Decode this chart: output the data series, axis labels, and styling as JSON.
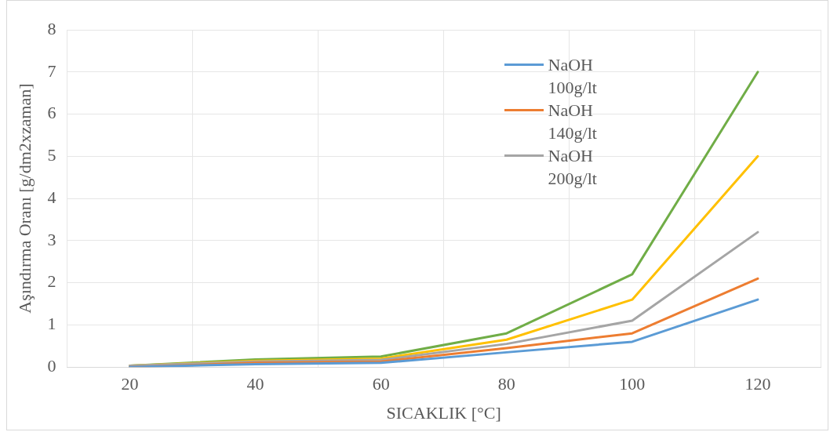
{
  "chart_data": {
    "type": "line",
    "xlabel": "SICAKLIK [°C]",
    "ylabel": "Aşındırma Oranı [g/dm2xzaman]",
    "categories": [
      "20",
      "40",
      "60",
      "80",
      "100",
      "120"
    ],
    "series": [
      {
        "name": "NaOH 100g/lt",
        "color": "#5b9bd5",
        "values": [
          0.0,
          0.07,
          0.1,
          0.35,
          0.6,
          1.6
        ]
      },
      {
        "name": "NaOH 140g/lt",
        "color": "#ed7d31",
        "values": [
          0.0,
          0.1,
          0.13,
          0.45,
          0.8,
          2.1
        ]
      },
      {
        "name": "NaOH 200g/lt",
        "color": "#a5a5a5",
        "values": [
          0.03,
          0.13,
          0.17,
          0.55,
          1.1,
          3.2
        ]
      },
      {
        "color": "#ffc000",
        "values": [
          0.03,
          0.15,
          0.2,
          0.65,
          1.6,
          5.0
        ]
      },
      {
        "color": "#70ad47",
        "values": [
          0.03,
          0.18,
          0.25,
          0.8,
          2.2,
          7.0
        ]
      }
    ],
    "ylim": [
      0,
      8
    ],
    "yticks": [
      0,
      1,
      2,
      3,
      4,
      5,
      6,
      7,
      8
    ],
    "grid": true,
    "legend": "top right",
    "marker": "none",
    "line_style": "solid"
  }
}
